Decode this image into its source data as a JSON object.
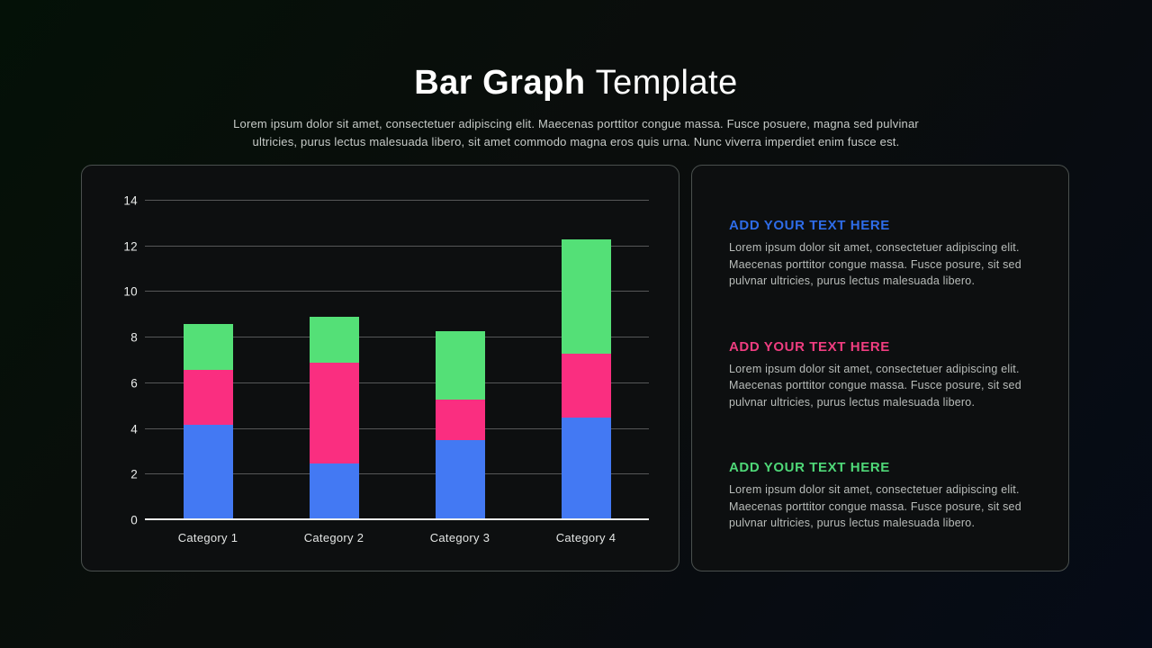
{
  "slide": {
    "title_bold": "Bar Graph",
    "title_light": "Template",
    "subtitle": "Lorem ipsum dolor sit amet, consectetuer adipiscing elit. Maecenas porttitor congue massa. Fusce posuere, magna sed pulvinar ultricies, purus lectus malesuada libero, sit amet commodo magna eros quis urna. Nunc viverra imperdiet enim fusce est."
  },
  "chart_data": {
    "type": "bar",
    "stacked": true,
    "title": "",
    "xlabel": "",
    "ylabel": "",
    "grid": true,
    "legend": "none",
    "ylim": [
      0,
      14
    ],
    "yticks": [
      0,
      2,
      4,
      6,
      8,
      10,
      12,
      14
    ],
    "categories": [
      "Category 1",
      "Category 2",
      "Category 3",
      "Category 4"
    ],
    "series": [
      {
        "name": "blue",
        "color": "#4379f3",
        "values": [
          4.2,
          2.5,
          3.5,
          4.5
        ]
      },
      {
        "name": "pink",
        "color": "#fa2e80",
        "values": [
          2.4,
          4.4,
          1.8,
          2.8
        ]
      },
      {
        "name": "green",
        "color": "#54e077",
        "values": [
          2.0,
          2.0,
          3.0,
          5.0
        ]
      }
    ],
    "totals": [
      8.6,
      8.9,
      8.3,
      12.3
    ]
  },
  "text_panel": {
    "blocks": [
      {
        "heading": "ADD YOUR TEXT HERE",
        "accent": "#2e6ce8",
        "body": "Lorem ipsum dolor sit amet, consectetuer adipiscing elit. Maecenas porttitor congue massa. Fusce posure, sit sed pulvnar ultricies, purus lectus malesuada libero."
      },
      {
        "heading": "ADD YOUR TEXT HERE",
        "accent": "#ef3d80",
        "body": "Lorem ipsum dolor sit amet, consectetuer adipiscing elit. Maecenas porttitor congue massa. Fusce posure, sit sed pulvnar ultricies, purus lectus malesuada libero."
      },
      {
        "heading": "ADD YOUR TEXT HERE",
        "accent": "#4fd878",
        "body": "Lorem ipsum dolor sit amet, consectetuer adipiscing elit. Maecenas porttitor congue massa. Fusce posure, sit sed pulvnar ultricies, purus lectus malesuada libero."
      }
    ]
  }
}
